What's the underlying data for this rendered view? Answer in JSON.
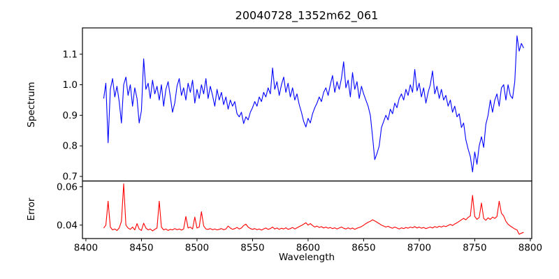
{
  "chart_data": {
    "type": "line",
    "title": "20040728_1352m62_061",
    "xlabel": "Wavelength",
    "grid": false,
    "legend": null,
    "background_color": "#ffffff",
    "axis_color": "#000000",
    "xlim": [
      8396.9,
      8801.3
    ],
    "x_tick_values": [
      8400,
      8450,
      8500,
      8550,
      8600,
      8650,
      8700,
      8750,
      8800
    ],
    "x_tick_labels": [
      "8400",
      "8450",
      "8500",
      "8550",
      "8600",
      "8650",
      "8700",
      "8750",
      "8800"
    ],
    "x_start": 8416,
    "x_step": 2,
    "panels": [
      {
        "name": "spectrum",
        "ylabel": "Spectrum",
        "color": "#0000ff",
        "ylim": [
          0.685,
          1.186
        ],
        "y_tick_values": [
          0.7,
          0.8,
          0.9,
          1.0,
          1.1
        ],
        "y_tick_labels": [
          "0.7",
          "0.8",
          "0.9",
          "1.0",
          "1.1"
        ],
        "values": [
          0.955,
          1.005,
          0.81,
          0.985,
          1.02,
          0.96,
          0.995,
          0.945,
          0.875,
          1.0,
          1.025,
          0.965,
          1.0,
          0.93,
          0.99,
          0.955,
          0.875,
          0.915,
          1.085,
          0.985,
          1.005,
          0.955,
          1.015,
          0.97,
          0.995,
          0.95,
          1.0,
          0.93,
          0.985,
          1.01,
          0.96,
          0.91,
          0.94,
          0.995,
          1.02,
          0.965,
          0.99,
          0.95,
          1.005,
          0.975,
          1.015,
          0.94,
          0.985,
          0.955,
          1.0,
          0.97,
          1.02,
          0.955,
          0.995,
          0.965,
          0.93,
          0.985,
          0.95,
          0.975,
          0.935,
          0.96,
          0.92,
          0.95,
          0.93,
          0.945,
          0.905,
          0.895,
          0.91,
          0.873,
          0.895,
          0.885,
          0.91,
          0.925,
          0.945,
          0.93,
          0.96,
          0.945,
          0.975,
          0.96,
          0.99,
          0.97,
          1.055,
          0.985,
          1.01,
          0.965,
          1.0,
          1.025,
          0.975,
          1.005,
          0.96,
          0.99,
          0.95,
          0.97,
          0.935,
          0.91,
          0.88,
          0.862,
          0.89,
          0.875,
          0.905,
          0.925,
          0.94,
          0.96,
          0.945,
          0.975,
          0.99,
          0.965,
          1.0,
          1.03,
          0.975,
          1.01,
          0.985,
          1.02,
          1.075,
          0.99,
          1.015,
          0.96,
          1.04,
          0.985,
          1.01,
          0.955,
          0.995,
          0.97,
          0.95,
          0.93,
          0.9,
          0.83,
          0.755,
          0.775,
          0.8,
          0.86,
          0.88,
          0.9,
          0.885,
          0.92,
          0.905,
          0.94,
          0.925,
          0.955,
          0.97,
          0.95,
          0.985,
          0.965,
          1.0,
          0.975,
          1.05,
          0.98,
          1.005,
          0.96,
          0.99,
          0.94,
          0.975,
          1.0,
          1.045,
          0.97,
          0.995,
          0.955,
          0.985,
          0.95,
          0.965,
          0.93,
          0.95,
          0.91,
          0.93,
          0.895,
          0.905,
          0.86,
          0.875,
          0.82,
          0.79,
          0.765,
          0.715,
          0.78,
          0.74,
          0.8,
          0.83,
          0.795,
          0.87,
          0.9,
          0.95,
          0.91,
          0.95,
          0.97,
          0.93,
          0.99,
          1.0,
          0.95,
          1.0,
          0.965,
          0.955,
          1.01,
          1.16,
          1.11,
          1.135,
          1.12
        ]
      },
      {
        "name": "error",
        "ylabel": "Error",
        "color": "#ff0000",
        "ylim": [
          0.033,
          0.063
        ],
        "y_tick_values": [
          0.04,
          0.06
        ],
        "y_tick_labels": [
          "0.04",
          "0.06"
        ],
        "values": [
          0.0385,
          0.04,
          0.0525,
          0.039,
          0.0375,
          0.038,
          0.0372,
          0.0385,
          0.042,
          0.0615,
          0.04,
          0.0385,
          0.0378,
          0.039,
          0.0375,
          0.0408,
          0.038,
          0.0372,
          0.041,
          0.0385,
          0.0375,
          0.038,
          0.037,
          0.0378,
          0.0385,
          0.0525,
          0.039,
          0.0375,
          0.038,
          0.0372,
          0.0378,
          0.0375,
          0.0382,
          0.0376,
          0.038,
          0.0374,
          0.038,
          0.0445,
          0.0385,
          0.039,
          0.038,
          0.0442,
          0.0385,
          0.039,
          0.047,
          0.0395,
          0.038,
          0.0378,
          0.0382,
          0.0376,
          0.038,
          0.0375,
          0.0378,
          0.0382,
          0.0376,
          0.038,
          0.0395,
          0.0385,
          0.0378,
          0.0382,
          0.0388,
          0.038,
          0.0385,
          0.0398,
          0.0405,
          0.039,
          0.0382,
          0.0378,
          0.0382,
          0.0376,
          0.038,
          0.0374,
          0.038,
          0.0385,
          0.0378,
          0.0382,
          0.039,
          0.038,
          0.0385,
          0.0378,
          0.0384,
          0.038,
          0.0386,
          0.0378,
          0.0382,
          0.0388,
          0.038,
          0.0386,
          0.0392,
          0.0398,
          0.0405,
          0.0412,
          0.04,
          0.0408,
          0.0398,
          0.039,
          0.0395,
          0.0388,
          0.0392,
          0.0385,
          0.039,
          0.0384,
          0.0388,
          0.0382,
          0.0386,
          0.038,
          0.0385,
          0.039,
          0.0384,
          0.038,
          0.0386,
          0.038,
          0.0385,
          0.0378,
          0.0384,
          0.0388,
          0.0392,
          0.04,
          0.0408,
          0.0415,
          0.042,
          0.0428,
          0.0422,
          0.0415,
          0.0408,
          0.04,
          0.0395,
          0.039,
          0.0394,
          0.0388,
          0.0384,
          0.039,
          0.0385,
          0.038,
          0.0386,
          0.0382,
          0.0388,
          0.0384,
          0.039,
          0.0386,
          0.0392,
          0.0385,
          0.039,
          0.0384,
          0.0388,
          0.0382,
          0.0386,
          0.039,
          0.0385,
          0.0392,
          0.0388,
          0.0394,
          0.039,
          0.0396,
          0.0392,
          0.0398,
          0.0404,
          0.0398,
          0.0406,
          0.0412,
          0.042,
          0.0428,
          0.0435,
          0.0428,
          0.044,
          0.0448,
          0.0555,
          0.0445,
          0.043,
          0.044,
          0.0515,
          0.0435,
          0.0425,
          0.0438,
          0.043,
          0.0442,
          0.0435,
          0.0445,
          0.0525,
          0.0462,
          0.0448,
          0.042,
          0.0405,
          0.0395,
          0.0388,
          0.038,
          0.0375,
          0.0352,
          0.0358,
          0.0362
        ]
      }
    ]
  }
}
